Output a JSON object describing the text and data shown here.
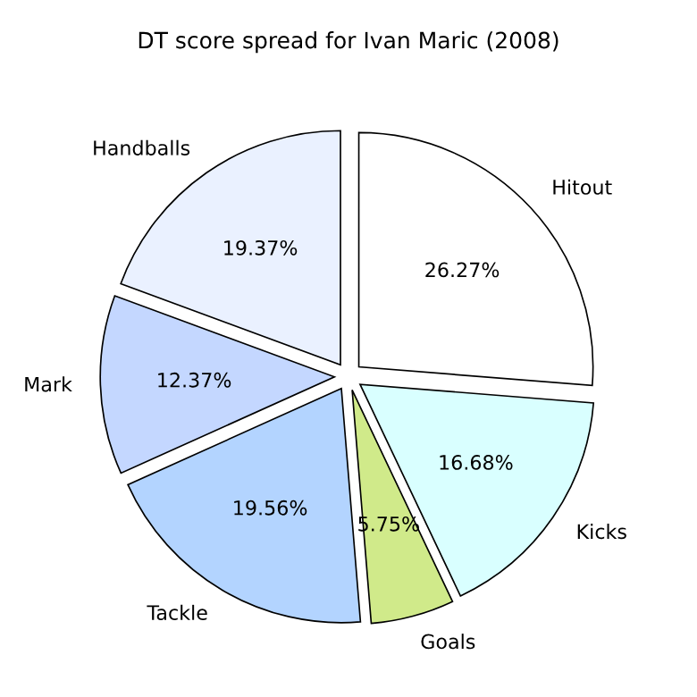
{
  "chart_data": {
    "type": "pie",
    "title": "DT score spread for Ivan Maric (2008)",
    "categories": [
      "Hitout",
      "Kicks",
      "Goals",
      "Tackle",
      "Mark",
      "Handballs"
    ],
    "values": [
      26.27,
      16.68,
      5.75,
      19.56,
      12.37,
      19.37
    ],
    "value_labels": [
      "26.27%",
      "16.68%",
      "5.75%",
      "19.56%",
      "12.37%",
      "19.37%"
    ],
    "colors": [
      "#ffffff",
      "#d9ffff",
      "#d0ea8a",
      "#b3d4ff",
      "#c4d7ff",
      "#eaf1ff"
    ],
    "legend": false
  }
}
